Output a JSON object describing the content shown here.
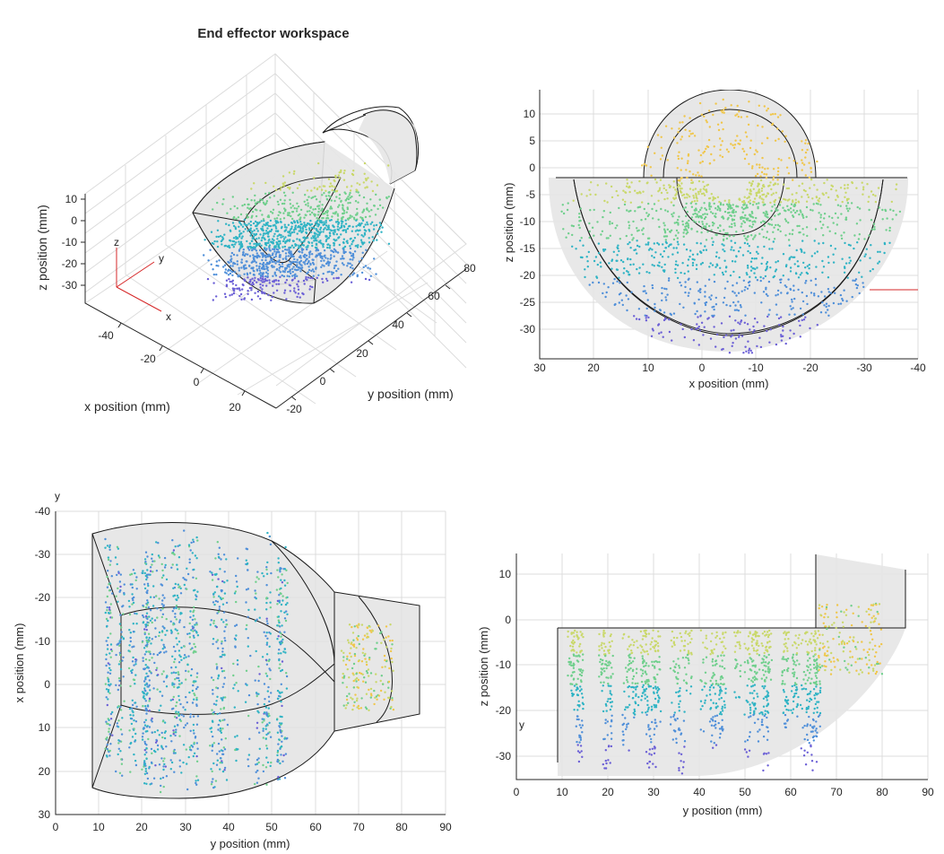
{
  "figure": {
    "title": "End effector workspace"
  },
  "chart_data": [
    {
      "type": "scatter",
      "name": "3d-view",
      "title": "End effector workspace",
      "xlabel": "x position (mm)",
      "ylabel": "y position (mm)",
      "zlabel": "z position (mm)",
      "x_ticks": [
        "-40",
        "-20",
        "0",
        "20"
      ],
      "y_ticks": [
        "-20",
        "0",
        "20",
        "40",
        "60",
        "80"
      ],
      "z_ticks": [
        "10",
        "0",
        "-10",
        "-20",
        "-30"
      ],
      "triad": {
        "x": "x",
        "y": "y",
        "z": "z"
      },
      "colormap": [
        "#6b5fd6",
        "#4f8fd9",
        "#2fb3c4",
        "#6fcf8c",
        "#c9d86a",
        "#f0c64a"
      ]
    },
    {
      "type": "scatter",
      "name": "xz-view",
      "xlabel": "x position (mm)",
      "ylabel": "z position (mm)",
      "xlim": [
        30,
        -40
      ],
      "ylim": [
        -35,
        15
      ],
      "x_ticks": [
        "30",
        "20",
        "10",
        "0",
        "-10",
        "-20",
        "-30",
        "-40"
      ],
      "y_ticks": [
        "10",
        "5",
        "0",
        "-5",
        "-10",
        "-15",
        "-20",
        "-25",
        "-30"
      ],
      "grid": true
    },
    {
      "type": "scatter",
      "name": "xy-view",
      "xlabel": "y position (mm)",
      "ylabel": "x position (mm)",
      "corner_label": "y",
      "xlim": [
        0,
        90
      ],
      "ylim": [
        -40,
        30
      ],
      "x_ticks": [
        "0",
        "10",
        "20",
        "30",
        "40",
        "50",
        "60",
        "70",
        "80",
        "90"
      ],
      "y_ticks": [
        "-40",
        "-30",
        "-20",
        "-10",
        "0",
        "10",
        "20",
        "30"
      ],
      "grid": true
    },
    {
      "type": "scatter",
      "name": "yz-view",
      "xlabel": "y position (mm)",
      "ylabel": "z position (mm)",
      "side_label": "y",
      "xlim": [
        0,
        90
      ],
      "ylim": [
        -35,
        15
      ],
      "x_ticks": [
        "0",
        "10",
        "20",
        "30",
        "40",
        "50",
        "60",
        "70",
        "80",
        "90"
      ],
      "y_ticks": [
        "10",
        "0",
        "-10",
        "-20",
        "-30"
      ],
      "grid": true
    }
  ]
}
